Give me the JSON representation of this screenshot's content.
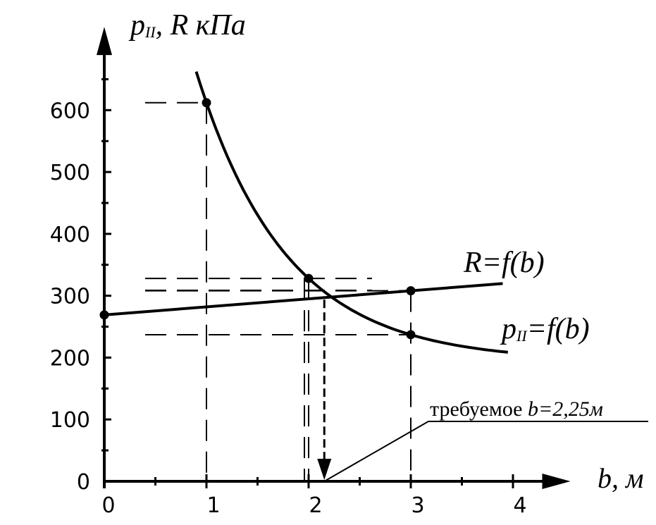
{
  "chart_data": {
    "type": "line",
    "ylabel_parts": [
      "p",
      "II",
      ", R кПа"
    ],
    "xlabel": "b, м",
    "x_ticks": [
      0,
      1,
      2,
      3,
      4
    ],
    "y_ticks": [
      0,
      100,
      200,
      300,
      400,
      500,
      600
    ],
    "xlim": [
      0,
      4.3
    ],
    "ylim": [
      0,
      680
    ],
    "grid": false,
    "series": [
      {
        "name": "R=f(b)",
        "label_parts": [
          "R=f(b)"
        ],
        "x": [
          0,
          3
        ],
        "y": [
          269,
          308
        ],
        "x_end": 3.9,
        "color": "#000000"
      },
      {
        "name": "pII=f(b)",
        "label_parts": [
          "p",
          "II",
          "=f(b)"
        ],
        "x": [
          1,
          2,
          3
        ],
        "y": [
          612,
          328,
          237
        ],
        "x_start": 0.9,
        "x_end": 3.95,
        "color": "#000000"
      }
    ],
    "annotation": {
      "parts": [
        "требуемое ",
        "b=2,25м"
      ],
      "x": 2.25
    },
    "colors": {
      "ink": "#000000",
      "background": "#ffffff"
    }
  }
}
